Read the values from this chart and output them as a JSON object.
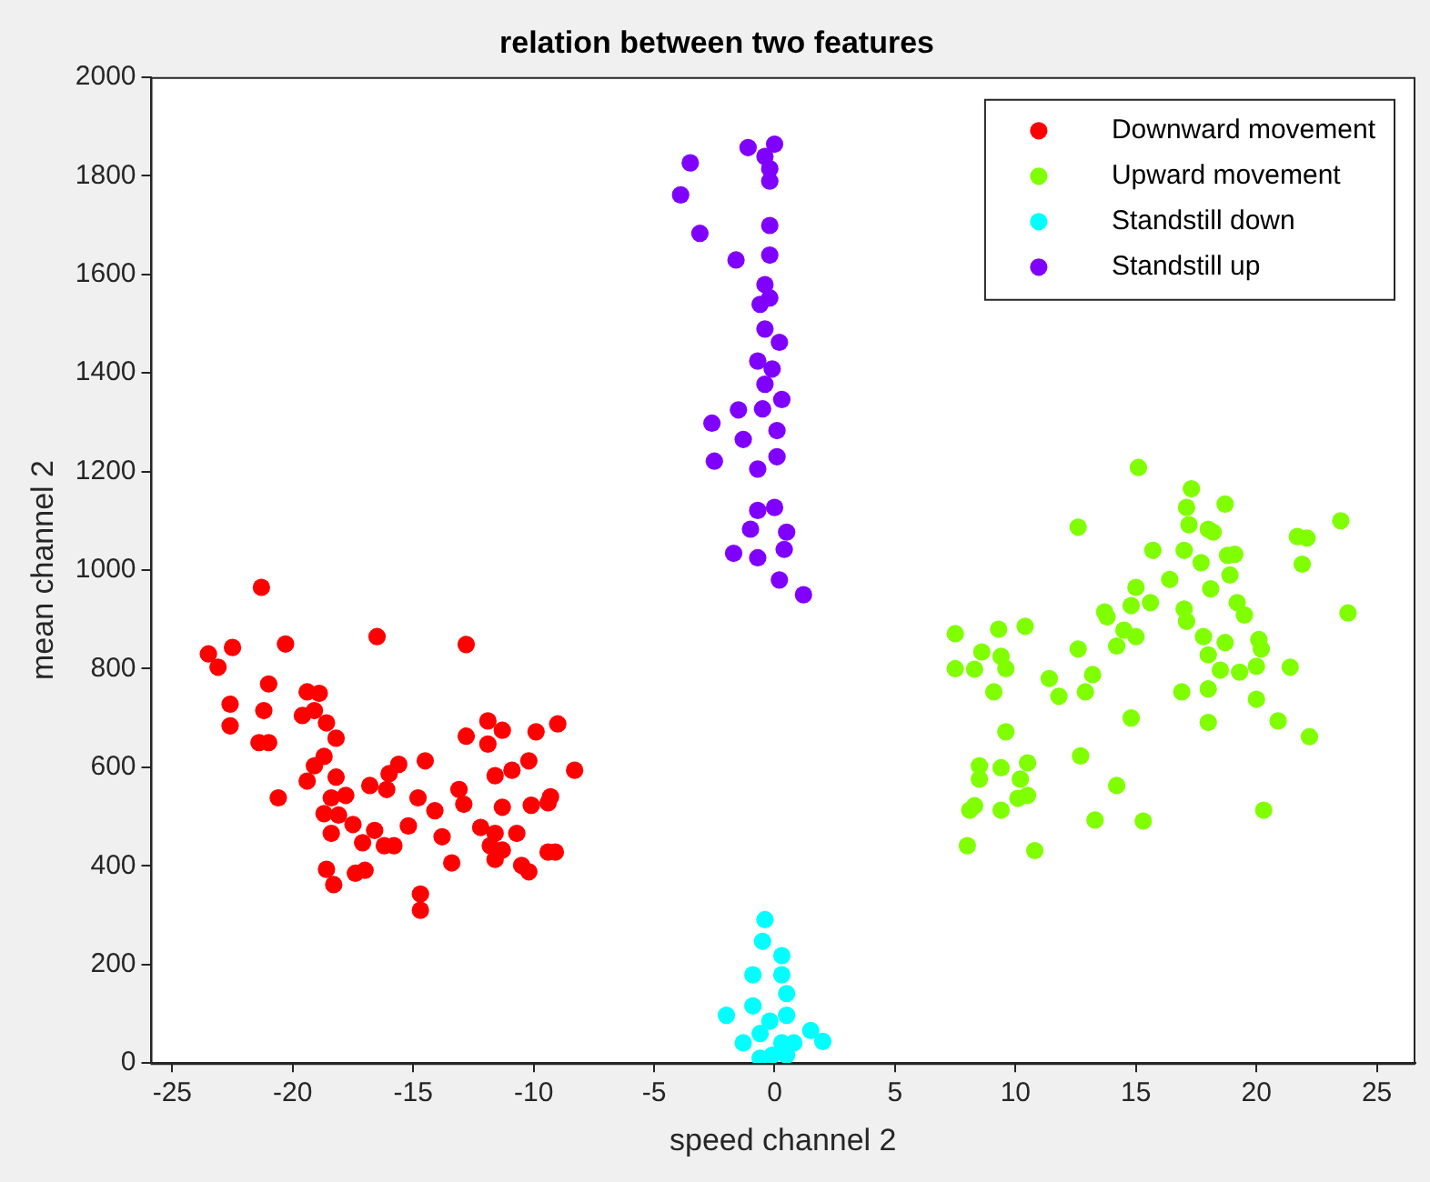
{
  "chart_data": {
    "type": "scatter",
    "title": "relation between two features",
    "xlabel": "speed channel 2",
    "ylabel": "mean channel 2",
    "xlim": [
      -25.9,
      26.6
    ],
    "xticks": [
      -25,
      -20,
      -15,
      -10,
      -5,
      0,
      5,
      10,
      15,
      20,
      25
    ],
    "ylim": [
      0,
      2000
    ],
    "yticks": [
      0,
      200,
      400,
      600,
      800,
      1000,
      1200,
      1400,
      1600,
      1800,
      2000
    ],
    "grid": false,
    "legend": "top right",
    "marker": "circle",
    "series": [
      {
        "name": "Downward movement",
        "color": "#ff0000",
        "x": [
          -21.3,
          -23.5,
          -23.1,
          -22.5,
          -20.3,
          -16.5,
          -12.8,
          -22.6,
          -22.6,
          -21.0,
          -21.2,
          -21.4,
          -21.0,
          -20.6,
          -19.4,
          -18.9,
          -19.6,
          -19.1,
          -18.6,
          -18.2,
          -18.7,
          -19.1,
          -19.4,
          -18.2,
          -18.4,
          -17.8,
          -18.7,
          -18.1,
          -17.5,
          -18.4,
          -18.6,
          -18.3,
          -17.4,
          -17.0,
          -17.1,
          -16.6,
          -16.2,
          -15.8,
          -16.8,
          -16.1,
          -16.0,
          -15.6,
          -14.5,
          -14.8,
          -15.2,
          -14.1,
          -13.8,
          -14.7,
          -14.7,
          -13.4,
          -13.1,
          -12.9,
          -12.8,
          -11.9,
          -11.9,
          -11.3,
          -11.6,
          -10.9,
          -11.3,
          -12.2,
          -11.6,
          -11.8,
          -11.3,
          -11.6,
          -10.7,
          -10.5,
          -10.2,
          -10.2,
          -9.9,
          -9.0,
          -8.3,
          -10.1,
          -9.4,
          -9.3,
          -9.4,
          -9.1
        ],
        "values": [
          965,
          830,
          803,
          843,
          850,
          865,
          849,
          728,
          684,
          769,
          715,
          650,
          650,
          538,
          753,
          750,
          705,
          715,
          690,
          659,
          622,
          603,
          572,
          580,
          538,
          543,
          506,
          503,
          484,
          466,
          393,
          362,
          385,
          391,
          447,
          472,
          441,
          441,
          563,
          555,
          587,
          606,
          613,
          538,
          481,
          512,
          459,
          343,
          310,
          406,
          555,
          525,
          663,
          647,
          694,
          675,
          583,
          594,
          519,
          478,
          466,
          441,
          432,
          413,
          466,
          401,
          388,
          613,
          672,
          688,
          594,
          523,
          528,
          540,
          428,
          428
        ]
      },
      {
        "name": "Upward movement",
        "color": "#80ff00",
        "x": [
          15.1,
          12.6,
          17.3,
          17.1,
          17.2,
          18.7,
          18.0,
          18.2,
          15.7,
          17.0,
          17.7,
          18.8,
          19.1,
          18.9,
          18.1,
          16.4,
          15.0,
          15.6,
          14.8,
          13.7,
          13.8,
          14.5,
          15.0,
          14.2,
          12.6,
          17.0,
          17.1,
          19.2,
          19.5,
          17.8,
          18.7,
          18.0,
          20.1,
          20.2,
          18.5,
          19.3,
          20.0,
          21.4,
          21.7,
          22.1,
          21.9,
          23.5,
          23.8,
          7.5,
          9.3,
          10.4,
          8.6,
          9.4,
          7.5,
          8.3,
          9.6,
          9.1,
          11.4,
          11.8,
          13.2,
          12.9,
          14.8,
          16.9,
          18.0,
          18.0,
          20.0,
          20.9,
          22.2,
          9.6,
          12.7,
          8.5,
          9.4,
          10.5,
          8.5,
          10.2,
          10.1,
          10.5,
          8.3,
          8.1,
          9.4,
          14.2,
          13.3,
          15.3,
          20.3,
          8.0,
          10.8
        ],
        "values": [
          1208,
          1087,
          1165,
          1127,
          1092,
          1134,
          1083,
          1077,
          1040,
          1040,
          1015,
          1030,
          1032,
          990,
          962,
          981,
          965,
          934,
          928,
          915,
          905,
          878,
          865,
          846,
          840,
          921,
          896,
          934,
          909,
          865,
          853,
          828,
          859,
          840,
          797,
          793,
          805,
          803,
          1068,
          1065,
          1012,
          1100,
          913,
          871,
          880,
          886,
          834,
          825,
          800,
          799,
          800,
          753,
          780,
          744,
          788,
          753,
          700,
          753,
          759,
          691,
          738,
          694,
          662,
          672,
          623,
          603,
          599,
          609,
          576,
          576,
          537,
          543,
          522,
          513,
          513,
          563,
          493,
          491,
          513,
          441,
          431
        ]
      },
      {
        "name": "Standstill down",
        "color": "#00ffff",
        "x": [
          -0.4,
          -0.5,
          0.3,
          -0.9,
          0.3,
          0.5,
          -0.9,
          -2.0,
          0.5,
          -0.2,
          -1.3,
          -0.6,
          1.5,
          2.0,
          0.8,
          -0.1,
          0.5,
          -0.6,
          0.3
        ],
        "values": [
          291,
          247,
          218,
          179,
          179,
          141,
          116,
          97,
          97,
          85,
          41,
          60,
          66,
          44,
          41,
          16,
          16,
          10,
          41
        ]
      },
      {
        "name": "Standstill up",
        "color": "#8000ff",
        "x": [
          -1.1,
          0.0,
          -0.4,
          -0.2,
          -0.2,
          -3.5,
          -3.9,
          -3.1,
          -1.6,
          -0.2,
          -0.2,
          -0.4,
          -0.2,
          -0.6,
          -0.4,
          0.2,
          -0.7,
          -0.1,
          -0.4,
          0.3,
          -0.5,
          0.1,
          -2.6,
          -1.5,
          -1.3,
          -2.5,
          0.1,
          -0.7,
          -0.7,
          0.0,
          -1.0,
          0.5,
          0.4,
          -1.7,
          -0.7,
          0.2,
          1.2
        ],
        "values": [
          1857,
          1864,
          1839,
          1814,
          1789,
          1826,
          1761,
          1683,
          1629,
          1699,
          1639,
          1579,
          1552,
          1539,
          1489,
          1462,
          1424,
          1408,
          1377,
          1346,
          1327,
          1283,
          1298,
          1325,
          1265,
          1221,
          1230,
          1205,
          1121,
          1127,
          1083,
          1077,
          1042,
          1034,
          1025,
          980,
          950
        ]
      }
    ]
  }
}
